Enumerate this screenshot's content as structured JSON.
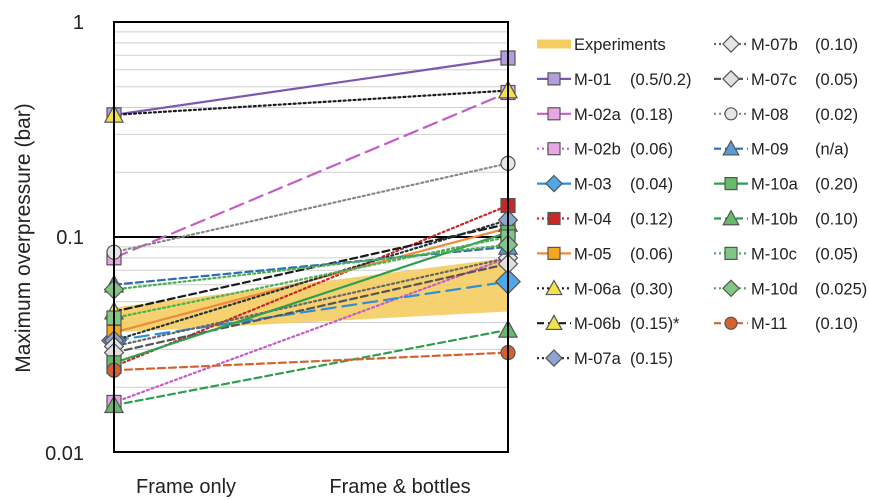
{
  "chart_data": {
    "type": "line",
    "categories": [
      "Frame only",
      "Frame & bottles"
    ],
    "ylabel": "Maximum overpressure (bar)",
    "xlabel": "",
    "yscale": "log",
    "ylim": [
      0.01,
      1
    ],
    "yticks": [
      "0.01",
      "0.1",
      "1"
    ],
    "grid": true,
    "legend_position": "right",
    "experiments_band": {
      "name": "Experiments",
      "low": [
        0.036,
        0.045
      ],
      "high": [
        0.047,
        0.08
      ],
      "color": "#F5CC60"
    },
    "series": [
      {
        "name": "M-01",
        "param": "(0.5/0.2)",
        "values": [
          0.37,
          0.68
        ],
        "color": "#7E57B2",
        "dash": "solid",
        "marker": "square",
        "fill": "#B39DDB"
      },
      {
        "name": "M-02a",
        "param": "(0.18)",
        "values": [
          0.08,
          0.47
        ],
        "color": "#C55DC8",
        "dash": "longdash",
        "marker": "square",
        "fill": "#E8A6E4"
      },
      {
        "name": "M-02b",
        "param": "(0.06)",
        "values": [
          0.017,
          0.08
        ],
        "color": "#C55DC8",
        "dash": "dot",
        "marker": "square",
        "fill": "#E8A6E4"
      },
      {
        "name": "M-03",
        "param": "(0.04)",
        "values": [
          0.033,
          0.062
        ],
        "color": "#2E8FD8",
        "dash": "longdash",
        "marker": "diamond",
        "fill": "#4FA6E8"
      },
      {
        "name": "M-04",
        "param": "(0.12)",
        "values": [
          0.025,
          0.14
        ],
        "color": "#C62828",
        "dash": "dot",
        "marker": "square",
        "fill": "#C62828"
      },
      {
        "name": "M-05",
        "param": "(0.06)",
        "values": [
          0.036,
          0.11
        ],
        "color": "#F08A3C",
        "dash": "solid",
        "marker": "square",
        "fill": "#F5A623"
      },
      {
        "name": "M-06a",
        "param": "(0.30)",
        "values": [
          0.37,
          0.48
        ],
        "color": "#1A1A1A",
        "dash": "dot",
        "marker": "triangle",
        "fill": "#F2E34B"
      },
      {
        "name": "M-06b",
        "param": "(0.15)*",
        "values": [
          0.045,
          0.115
        ],
        "color": "#1A1A1A",
        "dash": "dash",
        "marker": "triangle",
        "fill": "#F2E34B"
      },
      {
        "name": "M-07a",
        "param": "(0.15)",
        "values": [
          0.033,
          0.12
        ],
        "color": "#263238",
        "dash": "dot",
        "marker": "diamond",
        "fill": "#90A4D4"
      },
      {
        "name": "M-07b",
        "param": "(0.10)",
        "values": [
          0.031,
          0.08
        ],
        "color": "#666666",
        "dash": "dot",
        "marker": "diamond",
        "fill": "#E6E6E6"
      },
      {
        "name": "M-07c",
        "param": "(0.05)",
        "values": [
          0.029,
          0.075
        ],
        "color": "#555555",
        "dash": "dash",
        "marker": "diamond",
        "fill": "#E0E0E0"
      },
      {
        "name": "M-08",
        "param": "(0.02)",
        "values": [
          0.085,
          0.22
        ],
        "color": "#888888",
        "dash": "dot",
        "marker": "circle",
        "fill": "#E6E6E6"
      },
      {
        "name": "M-09",
        "param": "(n/a)",
        "values": [
          0.06,
          0.09
        ],
        "color": "#2E6BB8",
        "dash": "dash",
        "marker": "triangle",
        "fill": "#5B9BD5"
      },
      {
        "name": "M-10a",
        "param": "(0.20)",
        "values": [
          0.026,
          0.105
        ],
        "color": "#2E9E4F",
        "dash": "solid",
        "marker": "square",
        "fill": "#66BB6A"
      },
      {
        "name": "M-10b",
        "param": "(0.10)",
        "values": [
          0.0165,
          0.037
        ],
        "color": "#2E9E4F",
        "dash": "dash",
        "marker": "triangle",
        "fill": "#66BB6A"
      },
      {
        "name": "M-10c",
        "param": "(0.05)",
        "values": [
          0.042,
          0.1
        ],
        "color": "#4CAF50",
        "dash": "dot",
        "marker": "square",
        "fill": "#81C784"
      },
      {
        "name": "M-10d",
        "param": "(0.025)",
        "values": [
          0.057,
          0.092
        ],
        "color": "#4CAF50",
        "dash": "dot",
        "marker": "diamond",
        "fill": "#81C784"
      },
      {
        "name": "M-11",
        "param": "(0.10)",
        "values": [
          0.024,
          0.029
        ],
        "color": "#D4622E",
        "dash": "dash",
        "marker": "circle",
        "fill": "#D4622E"
      }
    ]
  }
}
